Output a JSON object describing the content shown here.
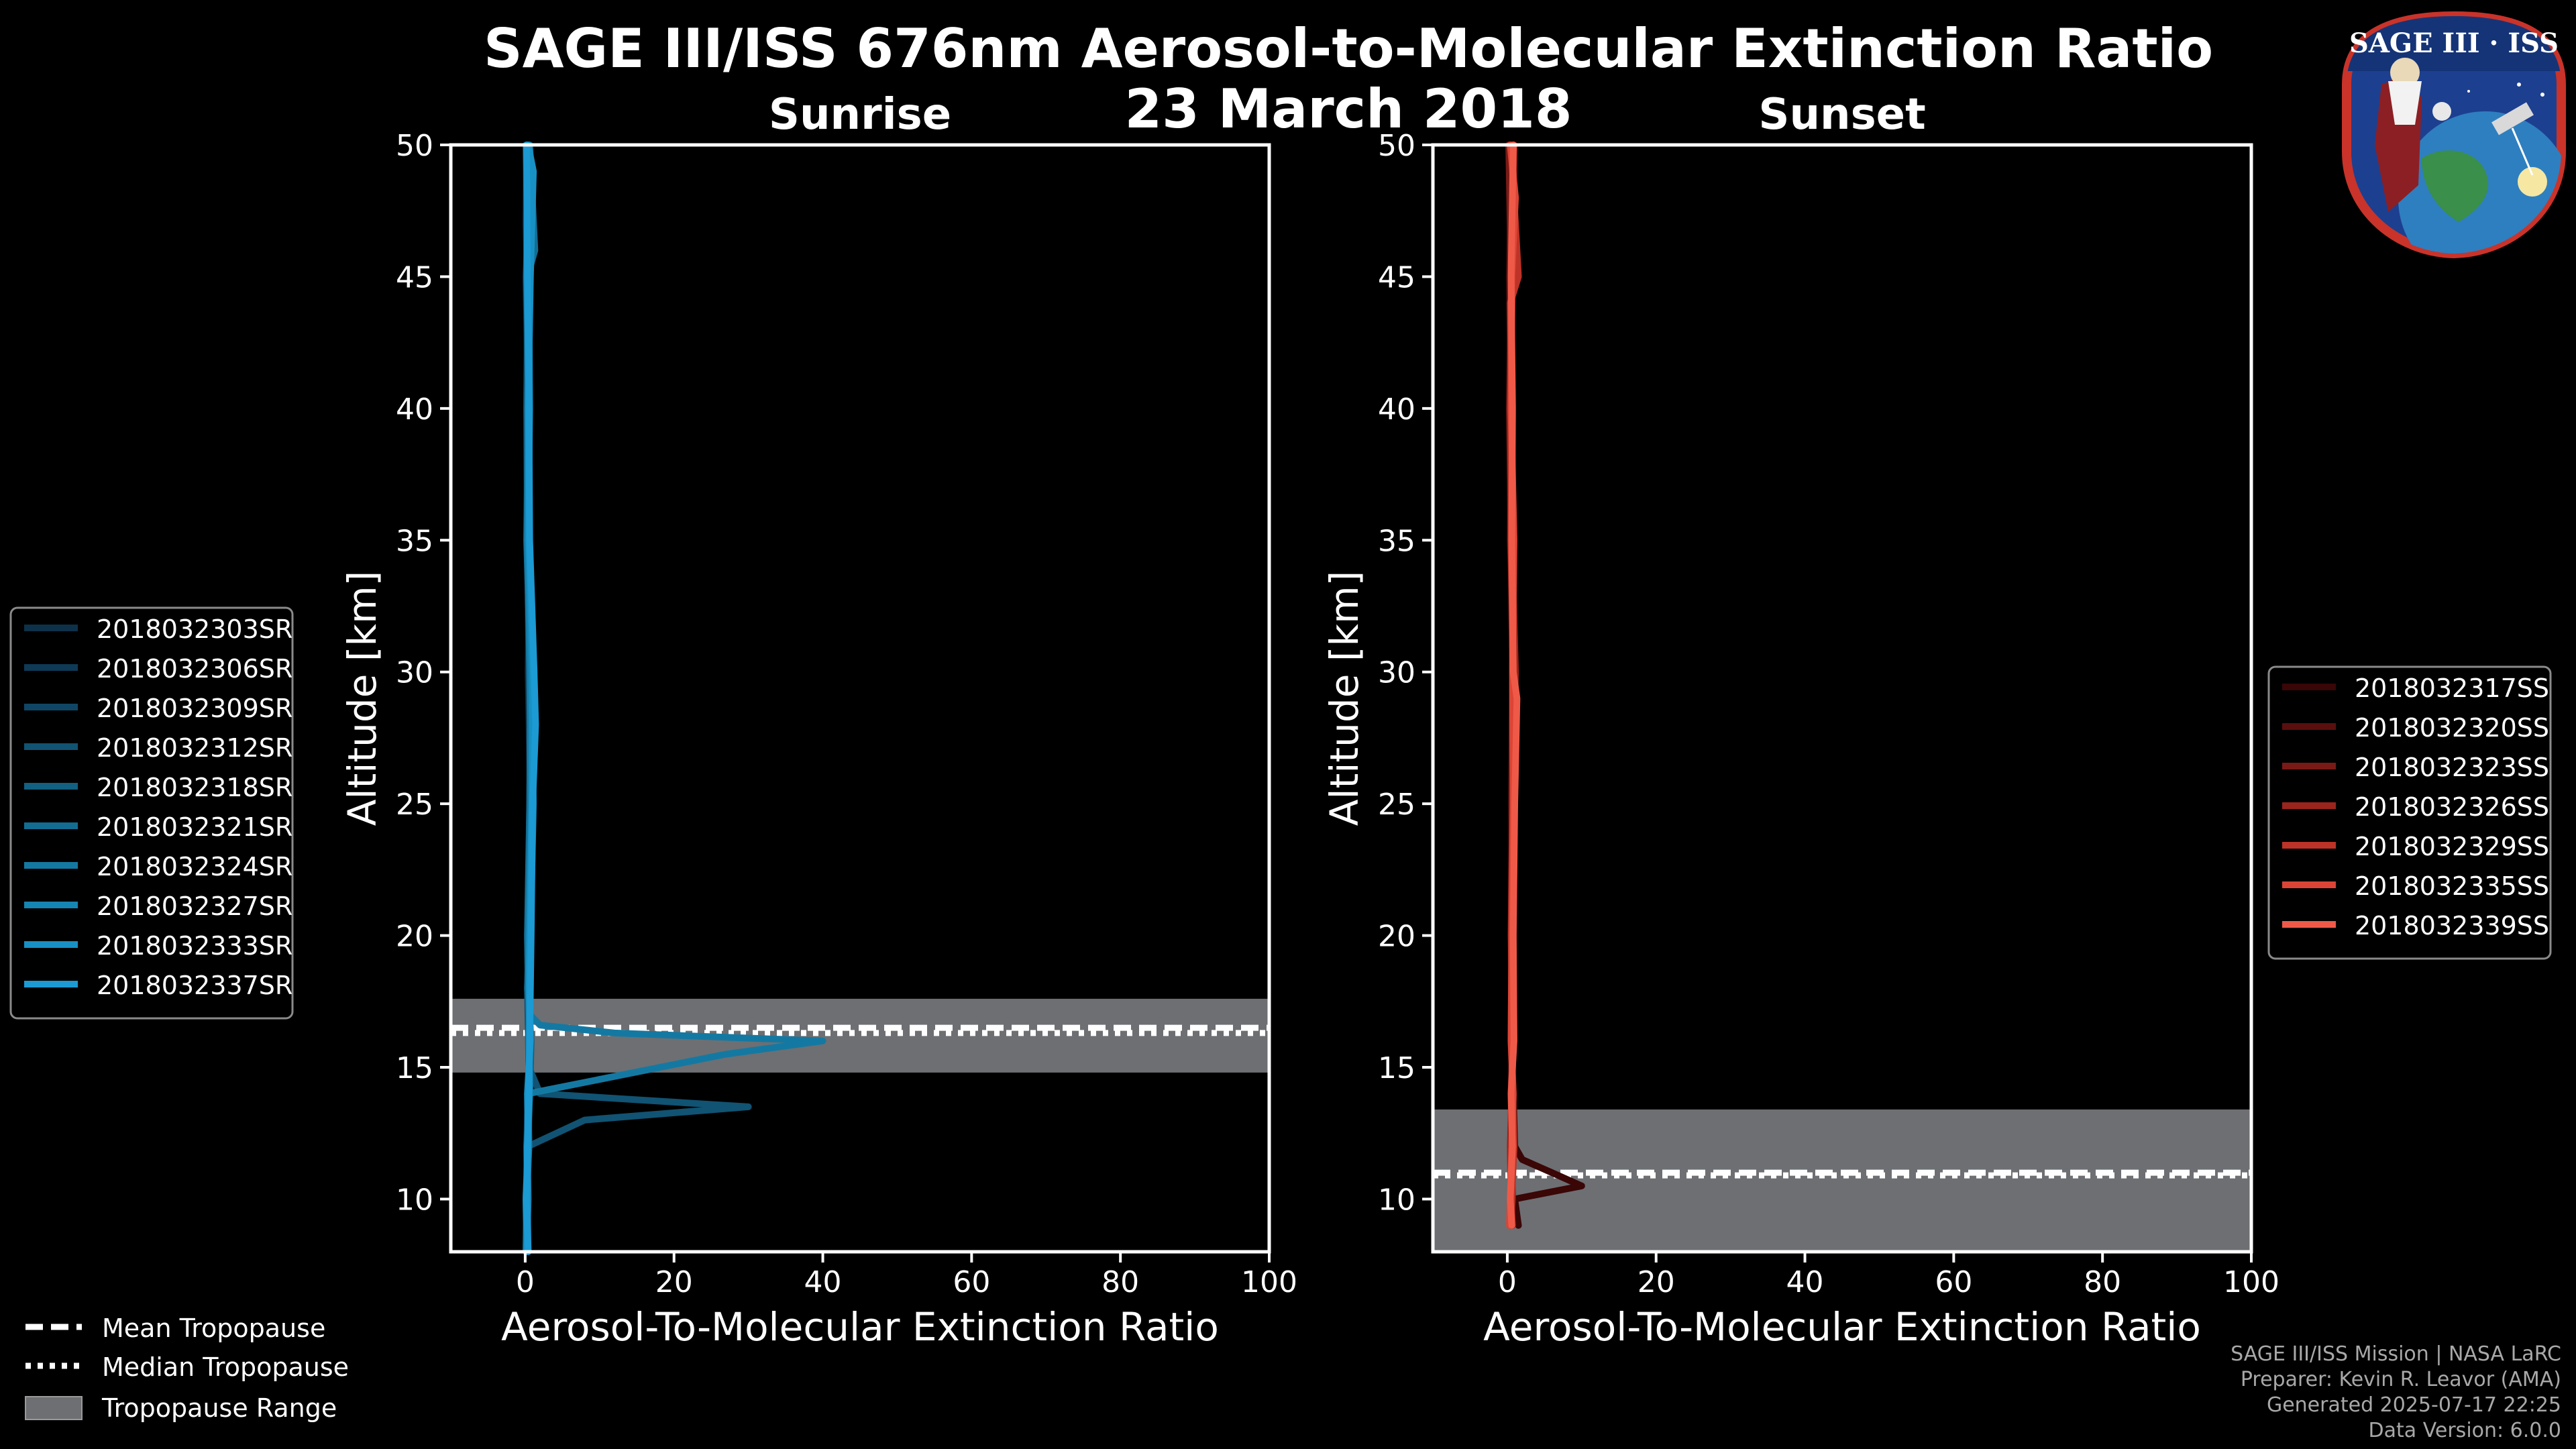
{
  "title_line1": "SAGE III/ISS 676nm Aerosol-to-Molecular Extinction Ratio",
  "title_line2": "23 March 2018",
  "logo_text": "SAGE III · ISS",
  "credits": {
    "line1": "SAGE III/ISS Mission | NASA LaRC",
    "line2": "Preparer: Kevin R. Leavor (AMA)",
    "line3": "Generated 2025-07-17 22:25",
    "line4": "Data Version: 6.0.0"
  },
  "colors": {
    "background": "#000000",
    "sunrise_series": [
      "#0d3148",
      "#0e3a56",
      "#104665",
      "#115373",
      "#126082",
      "#136d92",
      "#1479a2",
      "#1585b3",
      "#1890c3",
      "#1b9ad3"
    ],
    "sunset_series": [
      "#3a0606",
      "#5a0f0f",
      "#7a1a16",
      "#9b251d",
      "#bd3327",
      "#dc4535",
      "#ef5a48"
    ],
    "tropopause_band": "#6d6f73"
  },
  "tropopause_legend": {
    "mean": "Mean Tropopause",
    "median": "Median Tropopause",
    "range": "Tropopause Range"
  },
  "chart_data": [
    {
      "type": "line",
      "title": "Sunrise",
      "xlabel": "Aerosol-To-Molecular Extinction Ratio",
      "ylabel": "Altitude [km]",
      "xlim": [
        -10,
        100
      ],
      "ylim": [
        8,
        50
      ],
      "xticks": [
        0,
        20,
        40,
        60,
        80,
        100
      ],
      "yticks": [
        10,
        15,
        20,
        25,
        30,
        35,
        40,
        45,
        50
      ],
      "tropopause": {
        "mean": 16.5,
        "median": 16.3,
        "range": [
          14.8,
          17.6
        ]
      },
      "series": [
        {
          "name": "2018032303SR",
          "altitude": [
            8,
            10,
            12,
            14,
            16,
            18,
            20,
            25,
            30,
            35,
            40,
            45,
            47,
            50
          ],
          "ratio": [
            0.2,
            0.1,
            0.3,
            0.5,
            0.6,
            0.3,
            0.5,
            0.7,
            0.4,
            0.6,
            0.2,
            0.3,
            0.1,
            0.2
          ]
        },
        {
          "name": "2018032306SR",
          "altitude": [
            8,
            10,
            12,
            14,
            16,
            18,
            20,
            25,
            30,
            35,
            40,
            45,
            48,
            50
          ],
          "ratio": [
            0.3,
            0.2,
            0.4,
            0.6,
            0.5,
            0.4,
            0.6,
            0.9,
            0.5,
            0.3,
            0.4,
            0.1,
            0.5,
            0.3
          ]
        },
        {
          "name": "2018032309SR",
          "altitude": [
            8,
            10,
            12,
            14,
            16,
            18,
            20,
            25,
            30,
            35,
            40,
            45,
            50
          ],
          "ratio": [
            0.1,
            0.3,
            0.2,
            0.4,
            0.7,
            0.5,
            0.4,
            0.6,
            0.8,
            0.4,
            0.5,
            0.6,
            0.2
          ]
        },
        {
          "name": "2018032312SR",
          "altitude": [
            8,
            10,
            12,
            13.0,
            13.5,
            14.0,
            15,
            18,
            20,
            25,
            30,
            35,
            40,
            45,
            50
          ],
          "ratio": [
            0.2,
            0.1,
            0.4,
            8,
            30,
            2,
            0.5,
            0.3,
            0.6,
            0.8,
            0.6,
            0.3,
            0.2,
            0.4,
            0.1
          ]
        },
        {
          "name": "2018032318SR",
          "altitude": [
            8,
            10,
            12,
            14,
            16,
            18,
            20,
            25,
            30,
            35,
            40,
            45,
            50
          ],
          "ratio": [
            0.4,
            0.3,
            0.2,
            0.6,
            0.8,
            0.3,
            0.5,
            0.7,
            0.9,
            0.5,
            0.3,
            0.6,
            0.4
          ]
        },
        {
          "name": "2018032321SR",
          "altitude": [
            8,
            10,
            12,
            14,
            16,
            18,
            20,
            25,
            30,
            35,
            40,
            45,
            46,
            50
          ],
          "ratio": [
            0.1,
            0.2,
            0.3,
            0.5,
            0.6,
            0.4,
            0.3,
            0.6,
            0.7,
            0.2,
            0.4,
            0.3,
            1.3,
            0.6
          ]
        },
        {
          "name": "2018032324SR",
          "altitude": [
            8,
            10,
            12,
            14,
            15.5,
            16.0,
            16.3,
            16.6,
            17,
            18,
            20,
            25,
            30,
            35,
            40,
            45,
            50
          ],
          "ratio": [
            0.3,
            0.2,
            0.5,
            0.4,
            27,
            40,
            12,
            2,
            0.6,
            0.5,
            0.4,
            0.8,
            0.6,
            0.3,
            0.5,
            0.2,
            0.3
          ]
        },
        {
          "name": "2018032327SR",
          "altitude": [
            8,
            10,
            12,
            14,
            16,
            18,
            20,
            25,
            30,
            35,
            40,
            45,
            50
          ],
          "ratio": [
            0.2,
            0.4,
            0.3,
            0.6,
            0.5,
            0.6,
            0.7,
            1.1,
            0.8,
            0.4,
            0.6,
            0.5,
            0.3
          ]
        },
        {
          "name": "2018032333SR",
          "altitude": [
            8,
            10,
            12,
            14,
            16,
            18,
            20,
            25,
            30,
            35,
            40,
            45,
            49,
            50
          ],
          "ratio": [
            0.3,
            0.1,
            0.4,
            0.3,
            0.7,
            0.5,
            0.6,
            0.9,
            1.0,
            0.5,
            0.4,
            0.7,
            1.1,
            0.4
          ]
        },
        {
          "name": "2018032337SR",
          "altitude": [
            8,
            10,
            12,
            14,
            16,
            18,
            20,
            25,
            28,
            30,
            35,
            40,
            45,
            50
          ],
          "ratio": [
            0.4,
            0.2,
            0.3,
            0.5,
            0.6,
            0.7,
            0.8,
            1.0,
            1.4,
            1.2,
            0.6,
            0.5,
            0.3,
            0.2
          ]
        }
      ]
    },
    {
      "type": "line",
      "title": "Sunset",
      "xlabel": "Aerosol-To-Molecular Extinction Ratio",
      "ylabel": "Altitude [km]",
      "xlim": [
        -10,
        100
      ],
      "ylim": [
        8,
        50
      ],
      "xticks": [
        0,
        20,
        40,
        60,
        80,
        100
      ],
      "yticks": [
        10,
        15,
        20,
        25,
        30,
        35,
        40,
        45,
        50
      ],
      "tropopause": {
        "mean": 11.0,
        "median": 10.9,
        "range": [
          8,
          13.4
        ]
      },
      "series": [
        {
          "name": "2018032317SS",
          "altitude": [
            9,
            10,
            10.5,
            11.0,
            11.5,
            12,
            14,
            16,
            20,
            25,
            30,
            35,
            40,
            45,
            50
          ],
          "ratio": [
            1.5,
            1.0,
            10,
            6,
            2,
            1.0,
            0.8,
            0.6,
            0.5,
            0.6,
            0.7,
            0.5,
            0.3,
            0.6,
            0.4
          ]
        },
        {
          "name": "2018032320SS",
          "altitude": [
            9,
            10,
            12,
            14,
            16,
            20,
            25,
            30,
            35,
            40,
            45,
            50
          ],
          "ratio": [
            0.6,
            0.5,
            0.8,
            0.7,
            0.5,
            0.6,
            0.8,
            0.9,
            0.4,
            0.5,
            0.3,
            0.6
          ]
        },
        {
          "name": "2018032323SS",
          "altitude": [
            9,
            10,
            12,
            14,
            16,
            20,
            25,
            30,
            35,
            40,
            45,
            50
          ],
          "ratio": [
            0.4,
            0.7,
            0.6,
            0.5,
            0.7,
            0.8,
            0.6,
            0.7,
            0.5,
            0.3,
            0.5,
            0.2
          ]
        },
        {
          "name": "2018032326SS",
          "altitude": [
            9,
            10,
            12,
            14,
            16,
            20,
            25,
            30,
            35,
            40,
            45,
            50
          ],
          "ratio": [
            0.7,
            0.5,
            0.4,
            0.6,
            0.8,
            0.5,
            0.7,
            1.1,
            0.6,
            0.4,
            0.7,
            0.9
          ]
        },
        {
          "name": "2018032329SS",
          "altitude": [
            9,
            10,
            12,
            14,
            16,
            20,
            25,
            30,
            35,
            40,
            44,
            45,
            50
          ],
          "ratio": [
            0.5,
            0.6,
            0.9,
            0.7,
            0.6,
            0.7,
            0.9,
            0.8,
            0.5,
            0.6,
            0.4,
            1.5,
            0.5
          ]
        },
        {
          "name": "2018032335SS",
          "altitude": [
            9,
            10,
            12,
            14,
            16,
            20,
            25,
            30,
            35,
            40,
            45,
            48,
            50
          ],
          "ratio": [
            0.3,
            0.4,
            0.6,
            0.8,
            0.5,
            0.6,
            0.8,
            0.7,
            0.9,
            0.5,
            0.6,
            1.1,
            0.4
          ]
        },
        {
          "name": "2018032339SS",
          "altitude": [
            9,
            10,
            12,
            14,
            16,
            20,
            25,
            29,
            30,
            35,
            40,
            45,
            50
          ],
          "ratio": [
            0.6,
            0.4,
            0.7,
            0.5,
            0.9,
            0.8,
            1.0,
            1.3,
            0.8,
            0.6,
            0.7,
            0.5,
            0.8
          ]
        }
      ]
    }
  ]
}
